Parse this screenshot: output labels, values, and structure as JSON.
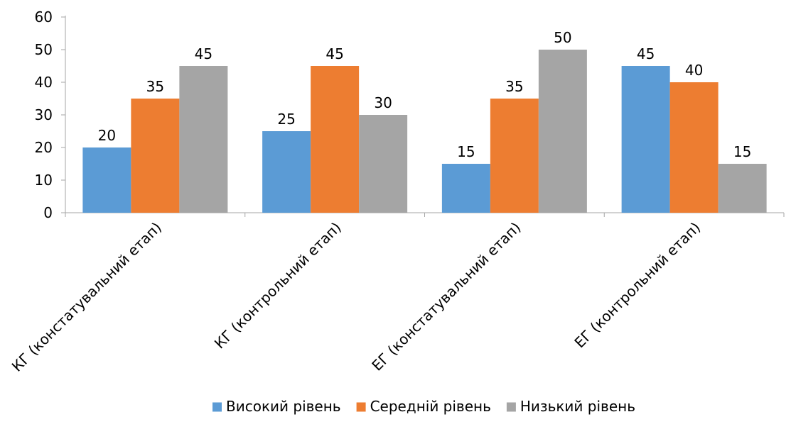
{
  "chart_data": {
    "type": "bar",
    "categories": [
      "КГ (констатувальний етап)",
      "КГ (контрольний етап)",
      "ЕГ (констатувальний етап)",
      "ЕГ (контрольний етап)"
    ],
    "series": [
      {
        "name": "Високий рівень",
        "color": "#5B9BD5",
        "values": [
          20,
          25,
          15,
          45
        ]
      },
      {
        "name": "Середній рівень",
        "color": "#ED7D31",
        "values": [
          35,
          45,
          35,
          40
        ]
      },
      {
        "name": "Низький рівень",
        "color": "#A5A5A5",
        "values": [
          45,
          30,
          50,
          15
        ]
      }
    ],
    "title": "",
    "xlabel": "",
    "ylabel": "",
    "ylim": [
      0,
      60
    ],
    "yticks": [
      "0",
      "10",
      "20",
      "30",
      "40",
      "50",
      "60"
    ],
    "grid": false,
    "data_labels": true,
    "legend_position": "bottom"
  }
}
